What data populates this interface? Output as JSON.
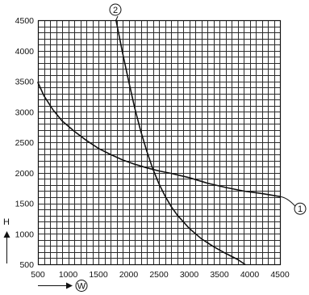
{
  "chart_data": {
    "type": "line",
    "xlabel": "W",
    "ylabel": "H",
    "xlim": [
      500,
      4500
    ],
    "ylim": [
      500,
      4500
    ],
    "xticks": [
      500,
      1000,
      1500,
      2000,
      2500,
      3000,
      3500,
      4000,
      4500
    ],
    "yticks": [
      500,
      1000,
      1500,
      2000,
      2500,
      3000,
      3500,
      4000,
      4500
    ],
    "minor_grid_step": 100,
    "grid": true,
    "series": [
      {
        "name": "1",
        "x": [
          500,
          600,
          750,
          900,
          1100,
          1300,
          1500,
          1700,
          1900,
          2100,
          2300,
          2500,
          2700,
          3000,
          3300,
          3600,
          3900,
          4200,
          4500
        ],
        "y": [
          3480,
          3260,
          3030,
          2850,
          2680,
          2530,
          2400,
          2300,
          2210,
          2140,
          2080,
          2030,
          1990,
          1920,
          1830,
          1760,
          1700,
          1660,
          1610
        ]
      },
      {
        "name": "2",
        "x": [
          1790,
          1900,
          2000,
          2100,
          2200,
          2300,
          2400,
          2500,
          2600,
          2700,
          2800,
          3000,
          3200,
          3400,
          3600,
          3800,
          3920
        ],
        "y": [
          4500,
          3960,
          3500,
          3060,
          2680,
          2350,
          2060,
          1820,
          1620,
          1450,
          1310,
          1090,
          920,
          790,
          680,
          580,
          500
        ]
      }
    ]
  }
}
